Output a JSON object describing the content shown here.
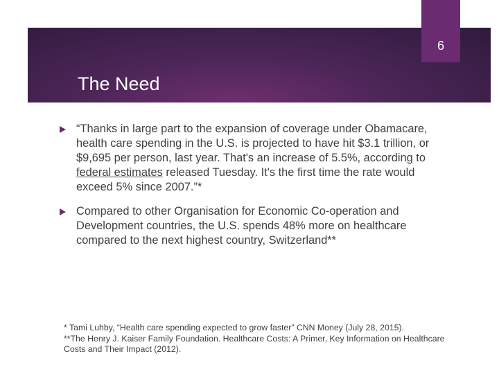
{
  "slide": {
    "page_number": "6",
    "title": "The Need",
    "accent_color": "#6b2b70"
  },
  "bullets": [
    {
      "before_link": "“Thanks in large part to the expansion of coverage under Obamacare, health care spending in the U.S. is projected to have hit $3.1 trillion, or $9,695 per person, last year. That's an increase of 5.5%, according to ",
      "link": "federal estimates",
      "after_link": " released Tuesday. It's the first time the rate would exceed 5% since 2007.”*"
    },
    {
      "text": "Compared to other Organisation for Economic Co-operation and Development countries, the U.S. spends 48% more on healthcare compared to the next highest country, Switzerland**"
    }
  ],
  "footnotes": [
    "* Tami Luhby, “Health care spending expected to grow faster” CNN Money (July 28, 2015).",
    "**The Henry J. Kaiser Family Foundation. Healthcare Costs: A Primer, Key Information on Healthcare Costs and Their Impact (2012)."
  ]
}
